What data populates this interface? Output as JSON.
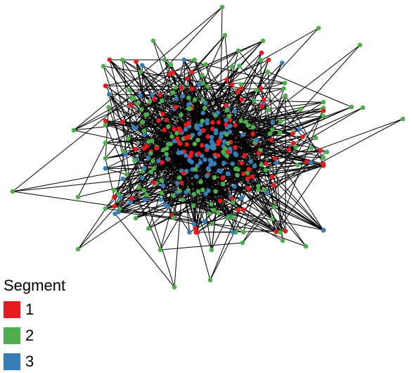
{
  "legend": {
    "title": "Segment",
    "items": [
      {
        "label": "1",
        "color": "#E41A1C"
      },
      {
        "label": "2",
        "color": "#4DAF4A"
      },
      {
        "label": "3",
        "color": "#377EB8"
      }
    ]
  },
  "graph": {
    "node_count_approx": 420,
    "segments": [
      "1",
      "2",
      "3"
    ]
  }
}
